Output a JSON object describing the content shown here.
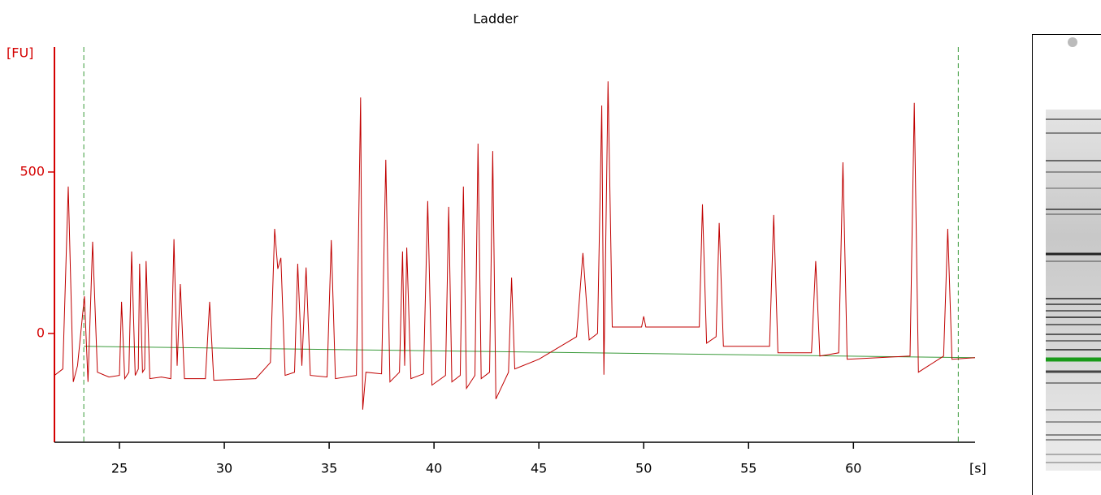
{
  "chart_data": {
    "type": "line",
    "title": "Ladder",
    "y_label": "[FU]",
    "x_label": "[s]",
    "xlim": [
      21.9,
      65.8
    ],
    "ylim": [
      -337,
      887
    ],
    "xticks": [
      25,
      30,
      35,
      40,
      45,
      50,
      55,
      60
    ],
    "yticks": [
      0,
      500
    ],
    "axis_color": "#d40000",
    "markers": {
      "color": "#3a9a3a",
      "x": [
        23.3,
        65.0
      ]
    },
    "series": [
      {
        "color": "#c00000",
        "x": [
          21.9,
          22.3,
          22.56,
          22.8,
          23.0,
          23.33,
          23.5,
          23.72,
          23.95,
          24.5,
          25.0,
          25.1,
          25.25,
          25.45,
          25.58,
          25.75,
          25.9,
          25.96,
          26.1,
          26.2,
          26.27,
          26.45,
          27.0,
          27.45,
          27.6,
          27.75,
          27.9,
          28.1,
          29.1,
          29.3,
          29.5,
          31.5,
          32.2,
          32.4,
          32.55,
          32.7,
          32.9,
          33.35,
          33.5,
          33.7,
          33.9,
          34.1,
          34.9,
          35.1,
          35.3,
          36.3,
          36.5,
          36.6,
          36.75,
          37.5,
          37.7,
          37.9,
          38.35,
          38.5,
          38.6,
          38.7,
          38.9,
          39.5,
          39.7,
          39.9,
          40.55,
          40.7,
          40.85,
          41.25,
          41.4,
          41.55,
          41.95,
          42.1,
          42.25,
          42.65,
          42.8,
          42.95,
          43.55,
          43.7,
          43.85,
          45.0,
          46.8,
          47.1,
          47.4,
          47.8,
          48.0,
          48.1,
          48.3,
          48.5,
          49.9,
          50.0,
          50.1,
          52.5,
          52.65,
          52.8,
          53.0,
          53.45,
          53.6,
          53.8,
          56.0,
          56.2,
          56.4,
          58.0,
          58.2,
          58.4,
          59.3,
          59.5,
          59.7,
          62.7,
          62.9,
          63.1,
          64.3,
          64.5,
          64.7,
          65.8
        ],
        "values": [
          -130,
          -110,
          455,
          -150,
          -100,
          115,
          -150,
          284,
          -120,
          -135,
          -130,
          98,
          -140,
          -120,
          254,
          -130,
          -110,
          216,
          -120,
          -110,
          224,
          -140,
          -135,
          -140,
          292,
          -100,
          153,
          -140,
          -140,
          98,
          -145,
          -140,
          -90,
          324,
          200,
          234,
          -130,
          -120,
          216,
          -100,
          204,
          -130,
          -135,
          289,
          -140,
          -130,
          731,
          -236,
          -120,
          -125,
          538,
          -150,
          -120,
          254,
          -100,
          266,
          -140,
          -125,
          410,
          -160,
          -130,
          392,
          -150,
          -130,
          455,
          -170,
          -130,
          588,
          -140,
          -120,
          565,
          -203,
          -120,
          173,
          -110,
          -80,
          -10,
          249,
          -20,
          0,
          706,
          -128,
          781,
          20,
          20,
          53,
          20,
          20,
          20,
          400,
          -30,
          -10,
          342,
          -40,
          -40,
          367,
          -60,
          -60,
          224,
          -70,
          -60,
          530,
          -80,
          -70,
          714,
          -120,
          -70,
          324,
          -80,
          -75
        ]
      },
      {
        "color": "#3a9a3a",
        "x": [
          23.3,
          65.8
        ],
        "values": [
          -40,
          -75
        ]
      }
    ]
  }
}
